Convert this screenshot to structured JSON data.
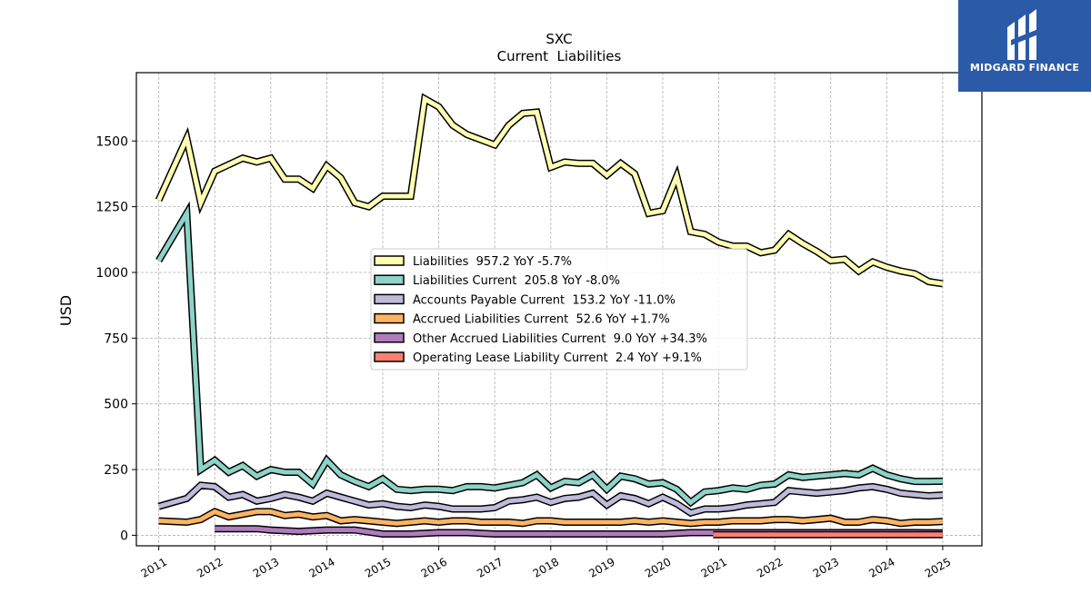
{
  "chart_data": {
    "type": "line",
    "title": "SXC",
    "subtitle": "Current  Liabilities",
    "ylabel": "USD",
    "xlabel": "",
    "xlim": [
      2010.6,
      2025.7
    ],
    "ylim": [
      -40,
      1760
    ],
    "grid": true,
    "legend_position": "center",
    "x_ticks": [
      "2011",
      "2012",
      "2013",
      "2014",
      "2015",
      "2016",
      "2017",
      "2018",
      "2019",
      "2020",
      "2021",
      "2022",
      "2023",
      "2024",
      "2025"
    ],
    "y_ticks": [
      "0",
      "250",
      "500",
      "750",
      "1000",
      "1250",
      "1500"
    ],
    "y_tick_values": [
      0,
      250,
      500,
      750,
      1000,
      1250,
      1500
    ],
    "series": [
      {
        "name": "Liabilities",
        "legend": "Liabilities  957.2 YoY -5.7%",
        "color": "#ffffb3",
        "x": [
          2011.0,
          2011.5,
          2011.75,
          2012.0,
          2012.25,
          2012.5,
          2012.75,
          2013.0,
          2013.25,
          2013.5,
          2013.75,
          2014.0,
          2014.25,
          2014.5,
          2014.75,
          2015.0,
          2015.25,
          2015.5,
          2015.75,
          2016.0,
          2016.25,
          2016.5,
          2016.75,
          2017.0,
          2017.25,
          2017.5,
          2017.75,
          2018.0,
          2018.25,
          2018.5,
          2018.75,
          2019.0,
          2019.25,
          2019.5,
          2019.75,
          2020.0,
          2020.25,
          2020.5,
          2020.75,
          2021.0,
          2021.25,
          2021.5,
          2021.75,
          2022.0,
          2022.25,
          2022.5,
          2022.75,
          2023.0,
          2023.25,
          2023.5,
          2023.75,
          2024.0,
          2024.25,
          2024.5,
          2024.75,
          2025.0
        ],
        "values": [
          1275,
          1510,
          1265,
          1385,
          1410,
          1435,
          1420,
          1435,
          1355,
          1355,
          1320,
          1405,
          1360,
          1265,
          1250,
          1290,
          1290,
          1290,
          1660,
          1630,
          1560,
          1525,
          1505,
          1485,
          1560,
          1605,
          1610,
          1400,
          1420,
          1415,
          1415,
          1370,
          1415,
          1375,
          1225,
          1235,
          1365,
          1155,
          1145,
          1115,
          1100,
          1100,
          1075,
          1085,
          1145,
          1110,
          1080,
          1045,
          1050,
          1005,
          1040,
          1020,
          1005,
          995,
          965,
          957.2
        ]
      },
      {
        "name": "Liabilities Current",
        "legend": "Liabilities Current  205.8 YoY -8.0%",
        "color": "#8dd3c7",
        "x": [
          2011.0,
          2011.5,
          2011.75,
          2012.0,
          2012.25,
          2012.5,
          2012.75,
          2013.0,
          2013.25,
          2013.5,
          2013.75,
          2014.0,
          2014.25,
          2014.5,
          2014.75,
          2015.0,
          2015.25,
          2015.5,
          2015.75,
          2016.0,
          2016.25,
          2016.5,
          2016.75,
          2017.0,
          2017.25,
          2017.5,
          2017.75,
          2018.0,
          2018.25,
          2018.5,
          2018.75,
          2019.0,
          2019.25,
          2019.5,
          2019.75,
          2020.0,
          2020.25,
          2020.5,
          2020.75,
          2021.0,
          2021.25,
          2021.5,
          2021.75,
          2022.0,
          2022.25,
          2022.5,
          2022.75,
          2023.0,
          2023.25,
          2023.5,
          2023.75,
          2024.0,
          2024.25,
          2024.5,
          2024.75,
          2025.0
        ],
        "values": [
          1045,
          1225,
          250,
          285,
          240,
          265,
          225,
          250,
          240,
          240,
          195,
          285,
          230,
          205,
          185,
          215,
          175,
          170,
          175,
          175,
          170,
          185,
          185,
          180,
          190,
          200,
          230,
          180,
          205,
          200,
          230,
          175,
          225,
          215,
          195,
          200,
          175,
          125,
          165,
          170,
          180,
          175,
          190,
          195,
          230,
          220,
          225,
          230,
          235,
          230,
          255,
          230,
          215,
          205,
          205,
          205.8
        ]
      },
      {
        "name": "Accounts Payable Current",
        "legend": "Accounts Payable Current  153.2 YoY -11.0%",
        "color": "#bebada",
        "x": [
          2011.0,
          2011.5,
          2011.75,
          2012.0,
          2012.25,
          2012.5,
          2012.75,
          2013.0,
          2013.25,
          2013.5,
          2013.75,
          2014.0,
          2014.25,
          2014.5,
          2014.75,
          2015.0,
          2015.25,
          2015.5,
          2015.75,
          2016.0,
          2016.25,
          2016.5,
          2016.75,
          2017.0,
          2017.25,
          2017.5,
          2017.75,
          2018.0,
          2018.25,
          2018.5,
          2018.75,
          2019.0,
          2019.25,
          2019.5,
          2019.75,
          2020.0,
          2020.25,
          2020.5,
          2020.75,
          2021.0,
          2021.25,
          2021.5,
          2021.75,
          2022.0,
          2022.25,
          2022.5,
          2022.75,
          2023.0,
          2023.25,
          2023.5,
          2023.75,
          2024.0,
          2024.25,
          2024.5,
          2024.75,
          2025.0
        ],
        "values": [
          110,
          140,
          190,
          185,
          145,
          155,
          130,
          140,
          155,
          145,
          130,
          160,
          145,
          130,
          115,
          120,
          110,
          105,
          115,
          110,
          100,
          100,
          100,
          105,
          130,
          135,
          145,
          125,
          140,
          145,
          160,
          115,
          150,
          140,
          120,
          145,
          120,
          85,
          100,
          100,
          105,
          115,
          120,
          125,
          170,
          165,
          160,
          165,
          170,
          180,
          185,
          175,
          160,
          155,
          150,
          153.2
        ]
      },
      {
        "name": "Accrued Liabilities Current",
        "legend": "Accrued Liabilities Current  52.6 YoY +1.7%",
        "color": "#fdb462",
        "x": [
          2011.0,
          2011.5,
          2011.75,
          2012.0,
          2012.25,
          2012.5,
          2012.75,
          2013.0,
          2013.25,
          2013.5,
          2013.75,
          2014.0,
          2014.25,
          2014.5,
          2014.75,
          2015.0,
          2015.25,
          2015.5,
          2015.75,
          2016.0,
          2016.25,
          2016.5,
          2016.75,
          2017.0,
          2017.25,
          2017.5,
          2017.75,
          2018.0,
          2018.25,
          2018.5,
          2018.75,
          2019.0,
          2019.25,
          2019.5,
          2019.75,
          2020.0,
          2020.25,
          2020.5,
          2020.75,
          2021.0,
          2021.25,
          2021.5,
          2021.75,
          2022.0,
          2022.25,
          2022.5,
          2022.75,
          2023.0,
          2023.25,
          2023.5,
          2023.75,
          2024.0,
          2024.25,
          2024.5,
          2024.75,
          2025.0
        ],
        "values": [
          55,
          50,
          60,
          90,
          70,
          80,
          90,
          90,
          75,
          80,
          70,
          75,
          55,
          60,
          55,
          50,
          45,
          50,
          55,
          50,
          55,
          55,
          50,
          50,
          50,
          45,
          55,
          55,
          50,
          50,
          50,
          50,
          50,
          55,
          50,
          55,
          50,
          45,
          50,
          50,
          55,
          55,
          55,
          60,
          60,
          55,
          60,
          65,
          50,
          50,
          60,
          55,
          45,
          50,
          50,
          52.6
        ]
      },
      {
        "name": "Other Accrued Liabilities Current",
        "legend": "Other Accrued Liabilities Current  9.0 YoY +34.3%",
        "color": "#b07cbd",
        "x": [
          2012.0,
          2012.5,
          2012.75,
          2013.0,
          2013.5,
          2014.0,
          2014.5,
          2015.0,
          2015.5,
          2016.0,
          2016.5,
          2017.0,
          2017.5,
          2018.0,
          2018.5,
          2019.0,
          2019.5,
          2020.0,
          2020.5,
          2020.9,
          2021.0,
          2021.5,
          2022.0,
          2022.5,
          2023.0,
          2023.5,
          2024.0,
          2024.5,
          2025.0
        ],
        "values": [
          25,
          25,
          25,
          20,
          15,
          20,
          20,
          5,
          5,
          10,
          10,
          5,
          5,
          5,
          5,
          5,
          5,
          5,
          10,
          10,
          10,
          10,
          10,
          10,
          10,
          10,
          10,
          10,
          9.0
        ]
      },
      {
        "name": "Operating Lease Liability Current",
        "legend": "Operating Lease Liability Current  2.4 YoY +9.1%",
        "color": "#fb8072",
        "x": [
          2020.9,
          2021.0,
          2021.5,
          2022.0,
          2022.5,
          2023.0,
          2023.5,
          2024.0,
          2024.5,
          2025.0
        ],
        "values": [
          2.0,
          2.2,
          2.2,
          2.3,
          2.3,
          2.2,
          2.2,
          2.3,
          2.4,
          2.4
        ]
      }
    ]
  },
  "branding": {
    "name": "MIDGARD FINANCE"
  }
}
